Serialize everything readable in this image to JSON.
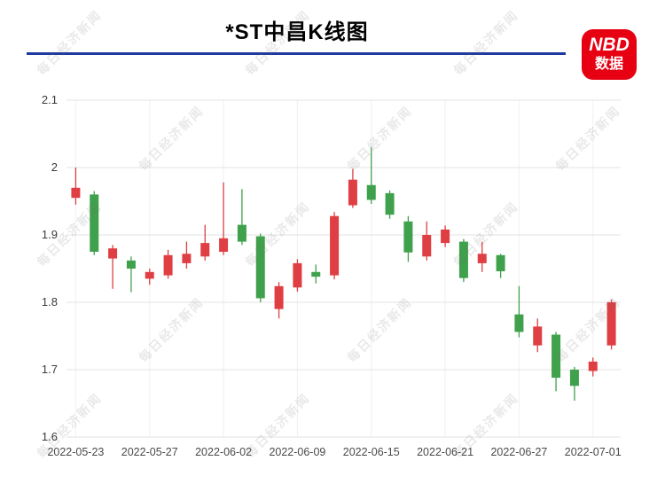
{
  "header": {
    "title": "*ST中昌K线图",
    "rule_color": "#1f3a9e",
    "logo": {
      "line1": "NBD",
      "line2": "数据",
      "bg": "#e60012",
      "fg": "#ffffff"
    }
  },
  "watermark": {
    "text": "每日经济新闻"
  },
  "chart_data": {
    "type": "candlestick",
    "title": "*ST中昌K线图",
    "xlabel": "",
    "ylabel": "",
    "ylim": [
      1.6,
      2.1
    ],
    "grid": true,
    "up_color": "#df3e43",
    "down_color": "#3fa14c",
    "y_ticks": [
      {
        "value": 2.1,
        "label": "2.1"
      },
      {
        "value": 2.0,
        "label": "2"
      },
      {
        "value": 1.9,
        "label": "1.9"
      },
      {
        "value": 1.8,
        "label": "1.8"
      },
      {
        "value": 1.7,
        "label": "1.7"
      },
      {
        "value": 1.6,
        "label": "1.6"
      }
    ],
    "x_ticks": [
      {
        "index": 0,
        "label": "2022-05-23"
      },
      {
        "index": 4,
        "label": "2022-05-27"
      },
      {
        "index": 8,
        "label": "2022-06-02"
      },
      {
        "index": 12,
        "label": "2022-06-09"
      },
      {
        "index": 16,
        "label": "2022-06-15"
      },
      {
        "index": 20,
        "label": "2022-06-21"
      },
      {
        "index": 24,
        "label": "2022-06-27"
      },
      {
        "index": 28,
        "label": "2022-07-01"
      }
    ],
    "candles": [
      {
        "date": "2022-05-23",
        "open": 1.955,
        "close": 1.97,
        "low": 1.945,
        "high": 2.0
      },
      {
        "date": "2022-05-24",
        "open": 1.96,
        "close": 1.875,
        "low": 1.87,
        "high": 1.965
      },
      {
        "date": "2022-05-25",
        "open": 1.865,
        "close": 1.88,
        "low": 1.82,
        "high": 1.885
      },
      {
        "date": "2022-05-26",
        "open": 1.862,
        "close": 1.85,
        "low": 1.815,
        "high": 1.868
      },
      {
        "date": "2022-05-27",
        "open": 1.835,
        "close": 1.845,
        "low": 1.826,
        "high": 1.85
      },
      {
        "date": "2022-05-30",
        "open": 1.84,
        "close": 1.87,
        "low": 1.835,
        "high": 1.878
      },
      {
        "date": "2022-05-31",
        "open": 1.858,
        "close": 1.872,
        "low": 1.85,
        "high": 1.89
      },
      {
        "date": "2022-06-01",
        "open": 1.868,
        "close": 1.888,
        "low": 1.862,
        "high": 1.915
      },
      {
        "date": "2022-06-02",
        "open": 1.875,
        "close": 1.895,
        "low": 1.87,
        "high": 1.978
      },
      {
        "date": "2022-06-06",
        "open": 1.915,
        "close": 1.89,
        "low": 1.885,
        "high": 1.968
      },
      {
        "date": "2022-06-07",
        "open": 1.898,
        "close": 1.806,
        "low": 1.8,
        "high": 1.902
      },
      {
        "date": "2022-06-08",
        "open": 1.79,
        "close": 1.824,
        "low": 1.776,
        "high": 1.83
      },
      {
        "date": "2022-06-09",
        "open": 1.822,
        "close": 1.858,
        "low": 1.816,
        "high": 1.864
      },
      {
        "date": "2022-06-10",
        "open": 1.845,
        "close": 1.838,
        "low": 1.828,
        "high": 1.856
      },
      {
        "date": "2022-06-13",
        "open": 1.84,
        "close": 1.928,
        "low": 1.834,
        "high": 1.934
      },
      {
        "date": "2022-06-14",
        "open": 1.944,
        "close": 1.982,
        "low": 1.94,
        "high": 1.998
      },
      {
        "date": "2022-06-15",
        "open": 1.974,
        "close": 1.952,
        "low": 1.946,
        "high": 2.03
      },
      {
        "date": "2022-06-16",
        "open": 1.962,
        "close": 1.93,
        "low": 1.924,
        "high": 1.966
      },
      {
        "date": "2022-06-17",
        "open": 1.92,
        "close": 1.874,
        "low": 1.86,
        "high": 1.928
      },
      {
        "date": "2022-06-20",
        "open": 1.868,
        "close": 1.9,
        "low": 1.862,
        "high": 1.92
      },
      {
        "date": "2022-06-21",
        "open": 1.888,
        "close": 1.908,
        "low": 1.882,
        "high": 1.914
      },
      {
        "date": "2022-06-22",
        "open": 1.89,
        "close": 1.836,
        "low": 1.83,
        "high": 1.894
      },
      {
        "date": "2022-06-23",
        "open": 1.858,
        "close": 1.872,
        "low": 1.845,
        "high": 1.89
      },
      {
        "date": "2022-06-24",
        "open": 1.87,
        "close": 1.846,
        "low": 1.836,
        "high": 1.872
      },
      {
        "date": "2022-06-27",
        "open": 1.782,
        "close": 1.756,
        "low": 1.748,
        "high": 1.824
      },
      {
        "date": "2022-06-28",
        "open": 1.736,
        "close": 1.764,
        "low": 1.726,
        "high": 1.776
      },
      {
        "date": "2022-06-29",
        "open": 1.752,
        "close": 1.688,
        "low": 1.668,
        "high": 1.756
      },
      {
        "date": "2022-06-30",
        "open": 1.7,
        "close": 1.676,
        "low": 1.654,
        "high": 1.704
      },
      {
        "date": "2022-07-01",
        "open": 1.698,
        "close": 1.712,
        "low": 1.69,
        "high": 1.718
      },
      {
        "date": "2022-07-04",
        "open": 1.736,
        "close": 1.8,
        "low": 1.73,
        "high": 1.804
      }
    ]
  }
}
